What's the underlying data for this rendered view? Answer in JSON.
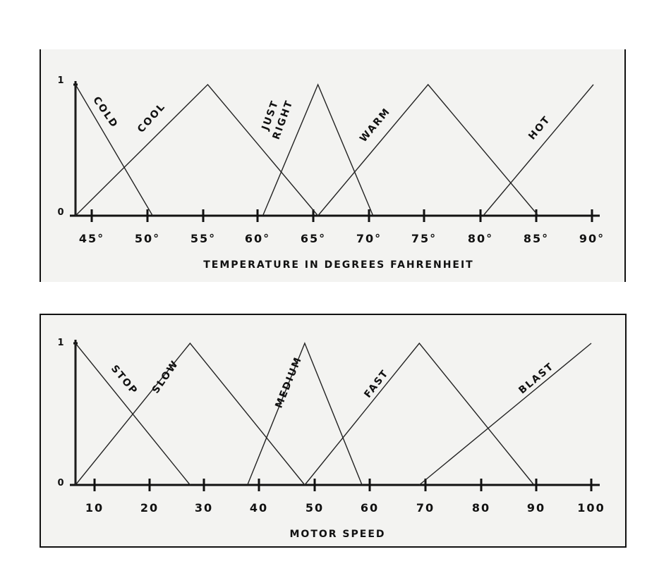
{
  "chart_data": [
    {
      "type": "line",
      "xlabel": "Temperature in Degrees Fahrenheit",
      "ylabel": "",
      "y_ticks": [
        "1",
        "0"
      ],
      "xlim": [
        43,
        90
      ],
      "ylim": [
        0,
        1
      ],
      "x_ticks": [
        45,
        50,
        55,
        60,
        65,
        70,
        75,
        80,
        85,
        90
      ],
      "x_tick_labels": [
        "45°",
        "50°",
        "55°",
        "60°",
        "65°",
        "70°",
        "75°",
        "80°",
        "85°",
        "90°"
      ],
      "series": [
        {
          "name": "Cold",
          "label_lines": [
            "Cold"
          ],
          "x": [
            43,
            43,
            50
          ],
          "y": [
            0,
            1,
            0
          ]
        },
        {
          "name": "Cool",
          "label_lines": [
            "Cool"
          ],
          "x": [
            43,
            55,
            65
          ],
          "y": [
            0,
            1,
            0
          ]
        },
        {
          "name": "Just Right",
          "label_lines": [
            "Just",
            "Right"
          ],
          "x": [
            60,
            65,
            70
          ],
          "y": [
            0,
            1,
            0
          ]
        },
        {
          "name": "Warm",
          "label_lines": [
            "Warm"
          ],
          "x": [
            65,
            75,
            85
          ],
          "y": [
            0,
            1,
            0
          ]
        },
        {
          "name": "Hot",
          "label_lines": [
            "Hot"
          ],
          "x": [
            80,
            90
          ],
          "y": [
            0,
            1
          ]
        }
      ]
    },
    {
      "type": "line",
      "xlabel": "Motor Speed",
      "ylabel": "",
      "y_ticks": [
        "1",
        "0"
      ],
      "xlim": [
        10,
        100
      ],
      "ylim": [
        0,
        1
      ],
      "x_ticks": [
        10,
        20,
        30,
        40,
        50,
        60,
        70,
        80,
        90,
        100
      ],
      "x_tick_labels": [
        "10",
        "20",
        "30",
        "40",
        "50",
        "60",
        "70",
        "80",
        "90",
        "100"
      ],
      "series": [
        {
          "name": "Stop",
          "label_lines": [
            "Stop"
          ],
          "x": [
            10,
            10,
            30
          ],
          "y": [
            0,
            1,
            0
          ]
        },
        {
          "name": "Slow",
          "label_lines": [
            "Slow"
          ],
          "x": [
            10,
            30,
            50
          ],
          "y": [
            0,
            1,
            0
          ]
        },
        {
          "name": "Medium",
          "label_lines": [
            "Medium"
          ],
          "x": [
            40,
            50,
            60
          ],
          "y": [
            0,
            1,
            0
          ]
        },
        {
          "name": "Fast",
          "label_lines": [
            "Fast"
          ],
          "x": [
            50,
            70,
            90
          ],
          "y": [
            0,
            1,
            0
          ]
        },
        {
          "name": "Blast",
          "label_lines": [
            "Blast"
          ],
          "x": [
            70,
            100
          ],
          "y": [
            0,
            1
          ]
        }
      ]
    }
  ]
}
